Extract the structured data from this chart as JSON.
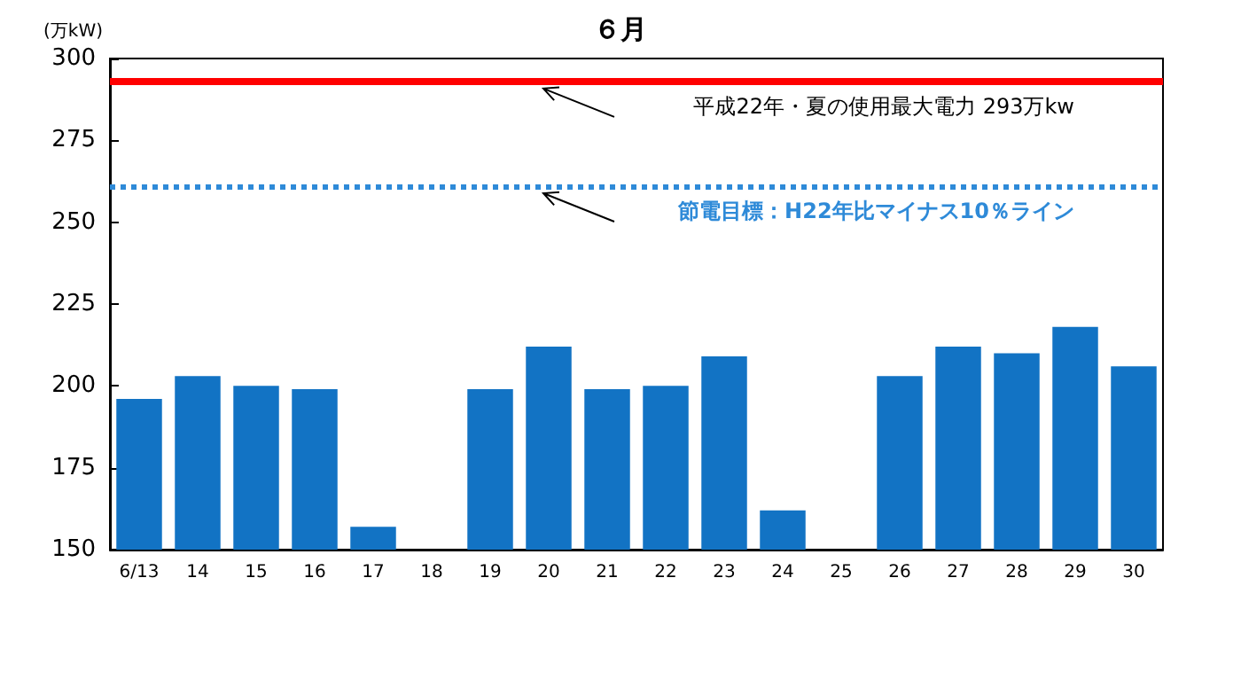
{
  "chart_data": {
    "type": "bar",
    "title": "６月",
    "ylabel": "(万kW)",
    "categories": [
      "6/13",
      "14",
      "15",
      "16",
      "17",
      "18",
      "19",
      "20",
      "21",
      "22",
      "23",
      "24",
      "25",
      "26",
      "27",
      "28",
      "29",
      "30"
    ],
    "values": [
      196,
      203,
      200,
      199,
      157,
      null,
      199,
      212,
      199,
      200,
      209,
      162,
      null,
      203,
      212,
      210,
      218,
      206
    ],
    "color": "#1273c4",
    "ylim": [
      150,
      300
    ],
    "yticks": [
      150,
      175,
      200,
      225,
      250,
      275,
      300
    ],
    "grid": false,
    "ref_lines": [
      {
        "axis": "y",
        "value": 293,
        "label": "平成22年・夏の使用最大電力 293万kw",
        "color": "#ff0000",
        "line_style": "solid"
      },
      {
        "axis": "y",
        "value": 261,
        "label": "節電目標：H22年比マイナス10％ライン",
        "color": "#2e8ad8",
        "line_style": "dotted"
      }
    ]
  }
}
